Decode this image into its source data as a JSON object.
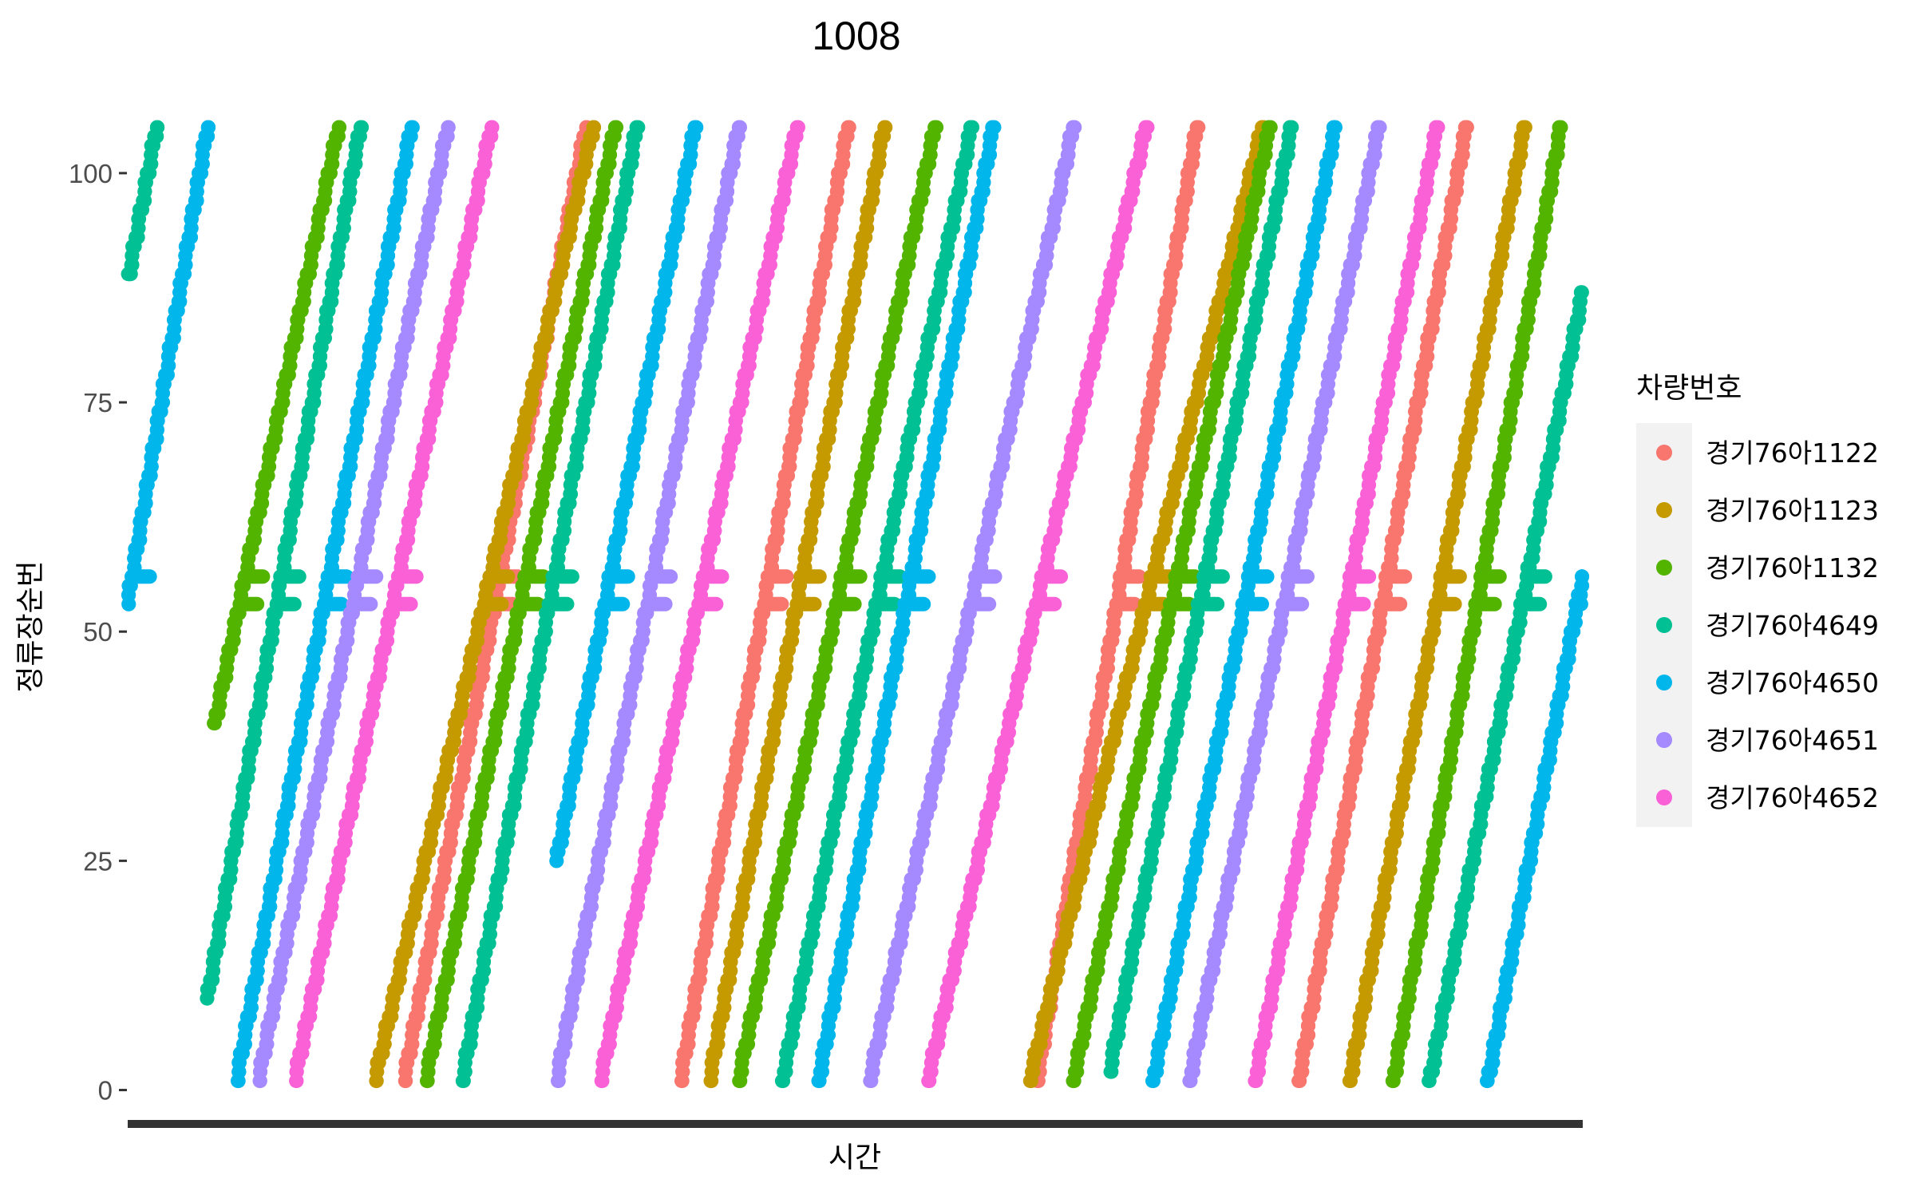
{
  "chart_data": {
    "type": "scatter",
    "title": "1008",
    "xlabel": "시간",
    "ylabel": "정류장순번",
    "x_tick_labels": [],
    "ylim": [
      -3,
      108
    ],
    "yticks": [
      0,
      25,
      50,
      75,
      100
    ],
    "ytick_labels": [
      "0",
      "25",
      "50",
      "75",
      "100"
    ],
    "x_range_pct": [
      0,
      100
    ],
    "grid": false,
    "legend": {
      "title": "차량번호",
      "position": "right"
    },
    "stop_plateaus": [
      53,
      56
    ],
    "series": [
      {
        "name": "경기76아1122",
        "color": "#F8766D",
        "trips": [
          {
            "x": [
              19,
              31.5
            ],
            "y": [
              1,
              105
            ]
          },
          {
            "x": [
              38,
              49.5
            ],
            "y": [
              1,
              105
            ]
          },
          {
            "x": [
              62.5,
              73.5
            ],
            "y": [
              1,
              105
            ]
          },
          {
            "x": [
              80.5,
              92
            ],
            "y": [
              1,
              105
            ]
          }
        ]
      },
      {
        "name": "경기76아1123",
        "color": "#C49A00",
        "trips": [
          {
            "x": [
              17,
              32
            ],
            "y": [
              1,
              105
            ]
          },
          {
            "x": [
              40,
              52
            ],
            "y": [
              1,
              105
            ]
          },
          {
            "x": [
              62,
              78
            ],
            "y": [
              1,
              105
            ]
          },
          {
            "x": [
              84,
              96
            ],
            "y": [
              1,
              105
            ]
          }
        ]
      },
      {
        "name": "경기76아1132",
        "color": "#53B400",
        "trips": [
          {
            "x": [
              6,
              14.5
            ],
            "y": [
              40,
              105
            ]
          },
          {
            "x": [
              20.5,
              33.5
            ],
            "y": [
              1,
              105
            ]
          },
          {
            "x": [
              42,
              55.5
            ],
            "y": [
              1,
              105
            ]
          },
          {
            "x": [
              65,
              78.5
            ],
            "y": [
              1,
              105
            ]
          },
          {
            "x": [
              87,
              98.5
            ],
            "y": [
              1,
              105
            ]
          }
        ]
      },
      {
        "name": "경기76아4649",
        "color": "#00C094",
        "trips": [
          {
            "x": [
              0,
              2
            ],
            "y": [
              88,
              105
            ]
          },
          {
            "x": [
              5.5,
              16
            ],
            "y": [
              10,
              105
            ]
          },
          {
            "x": [
              23,
              35
            ],
            "y": [
              1,
              105
            ]
          },
          {
            "x": [
              45,
              58
            ],
            "y": [
              1,
              105
            ]
          },
          {
            "x": [
              67.5,
              80
            ],
            "y": [
              2,
              105
            ]
          },
          {
            "x": [
              89.5,
              100
            ],
            "y": [
              1,
              87
            ]
          }
        ]
      },
      {
        "name": "경기76아4650",
        "color": "#00B6EB",
        "trips": [
          {
            "x": [
              0,
              5.5
            ],
            "y": [
              53,
              105
            ]
          },
          {
            "x": [
              7.5,
              19.5
            ],
            "y": [
              1,
              105
            ]
          },
          {
            "x": [
              29.5,
              39
            ],
            "y": [
              25,
              105
            ]
          },
          {
            "x": [
              47.5,
              59.5
            ],
            "y": [
              1,
              105
            ]
          },
          {
            "x": [
              70.5,
              83
            ],
            "y": [
              1,
              105
            ]
          },
          {
            "x": [
              93.5,
              100
            ],
            "y": [
              1,
              56
            ]
          }
        ]
      },
      {
        "name": "경기76아4651",
        "color": "#A58AFF",
        "trips": [
          {
            "x": [
              9,
              22
            ],
            "y": [
              1,
              105
            ]
          },
          {
            "x": [
              29.5,
              42
            ],
            "y": [
              1,
              105
            ]
          },
          {
            "x": [
              51,
              65
            ],
            "y": [
              1,
              105
            ]
          },
          {
            "x": [
              73,
              86
            ],
            "y": [
              1,
              105
            ]
          }
        ]
      },
      {
        "name": "경기76아4652",
        "color": "#FB61D7",
        "trips": [
          {
            "x": [
              11.5,
              25
            ],
            "y": [
              1,
              105
            ]
          },
          {
            "x": [
              32.5,
              46
            ],
            "y": [
              1,
              105
            ]
          },
          {
            "x": [
              55,
              70
            ],
            "y": [
              1,
              105
            ]
          },
          {
            "x": [
              77.5,
              90
            ],
            "y": [
              1,
              105
            ]
          }
        ]
      }
    ]
  }
}
